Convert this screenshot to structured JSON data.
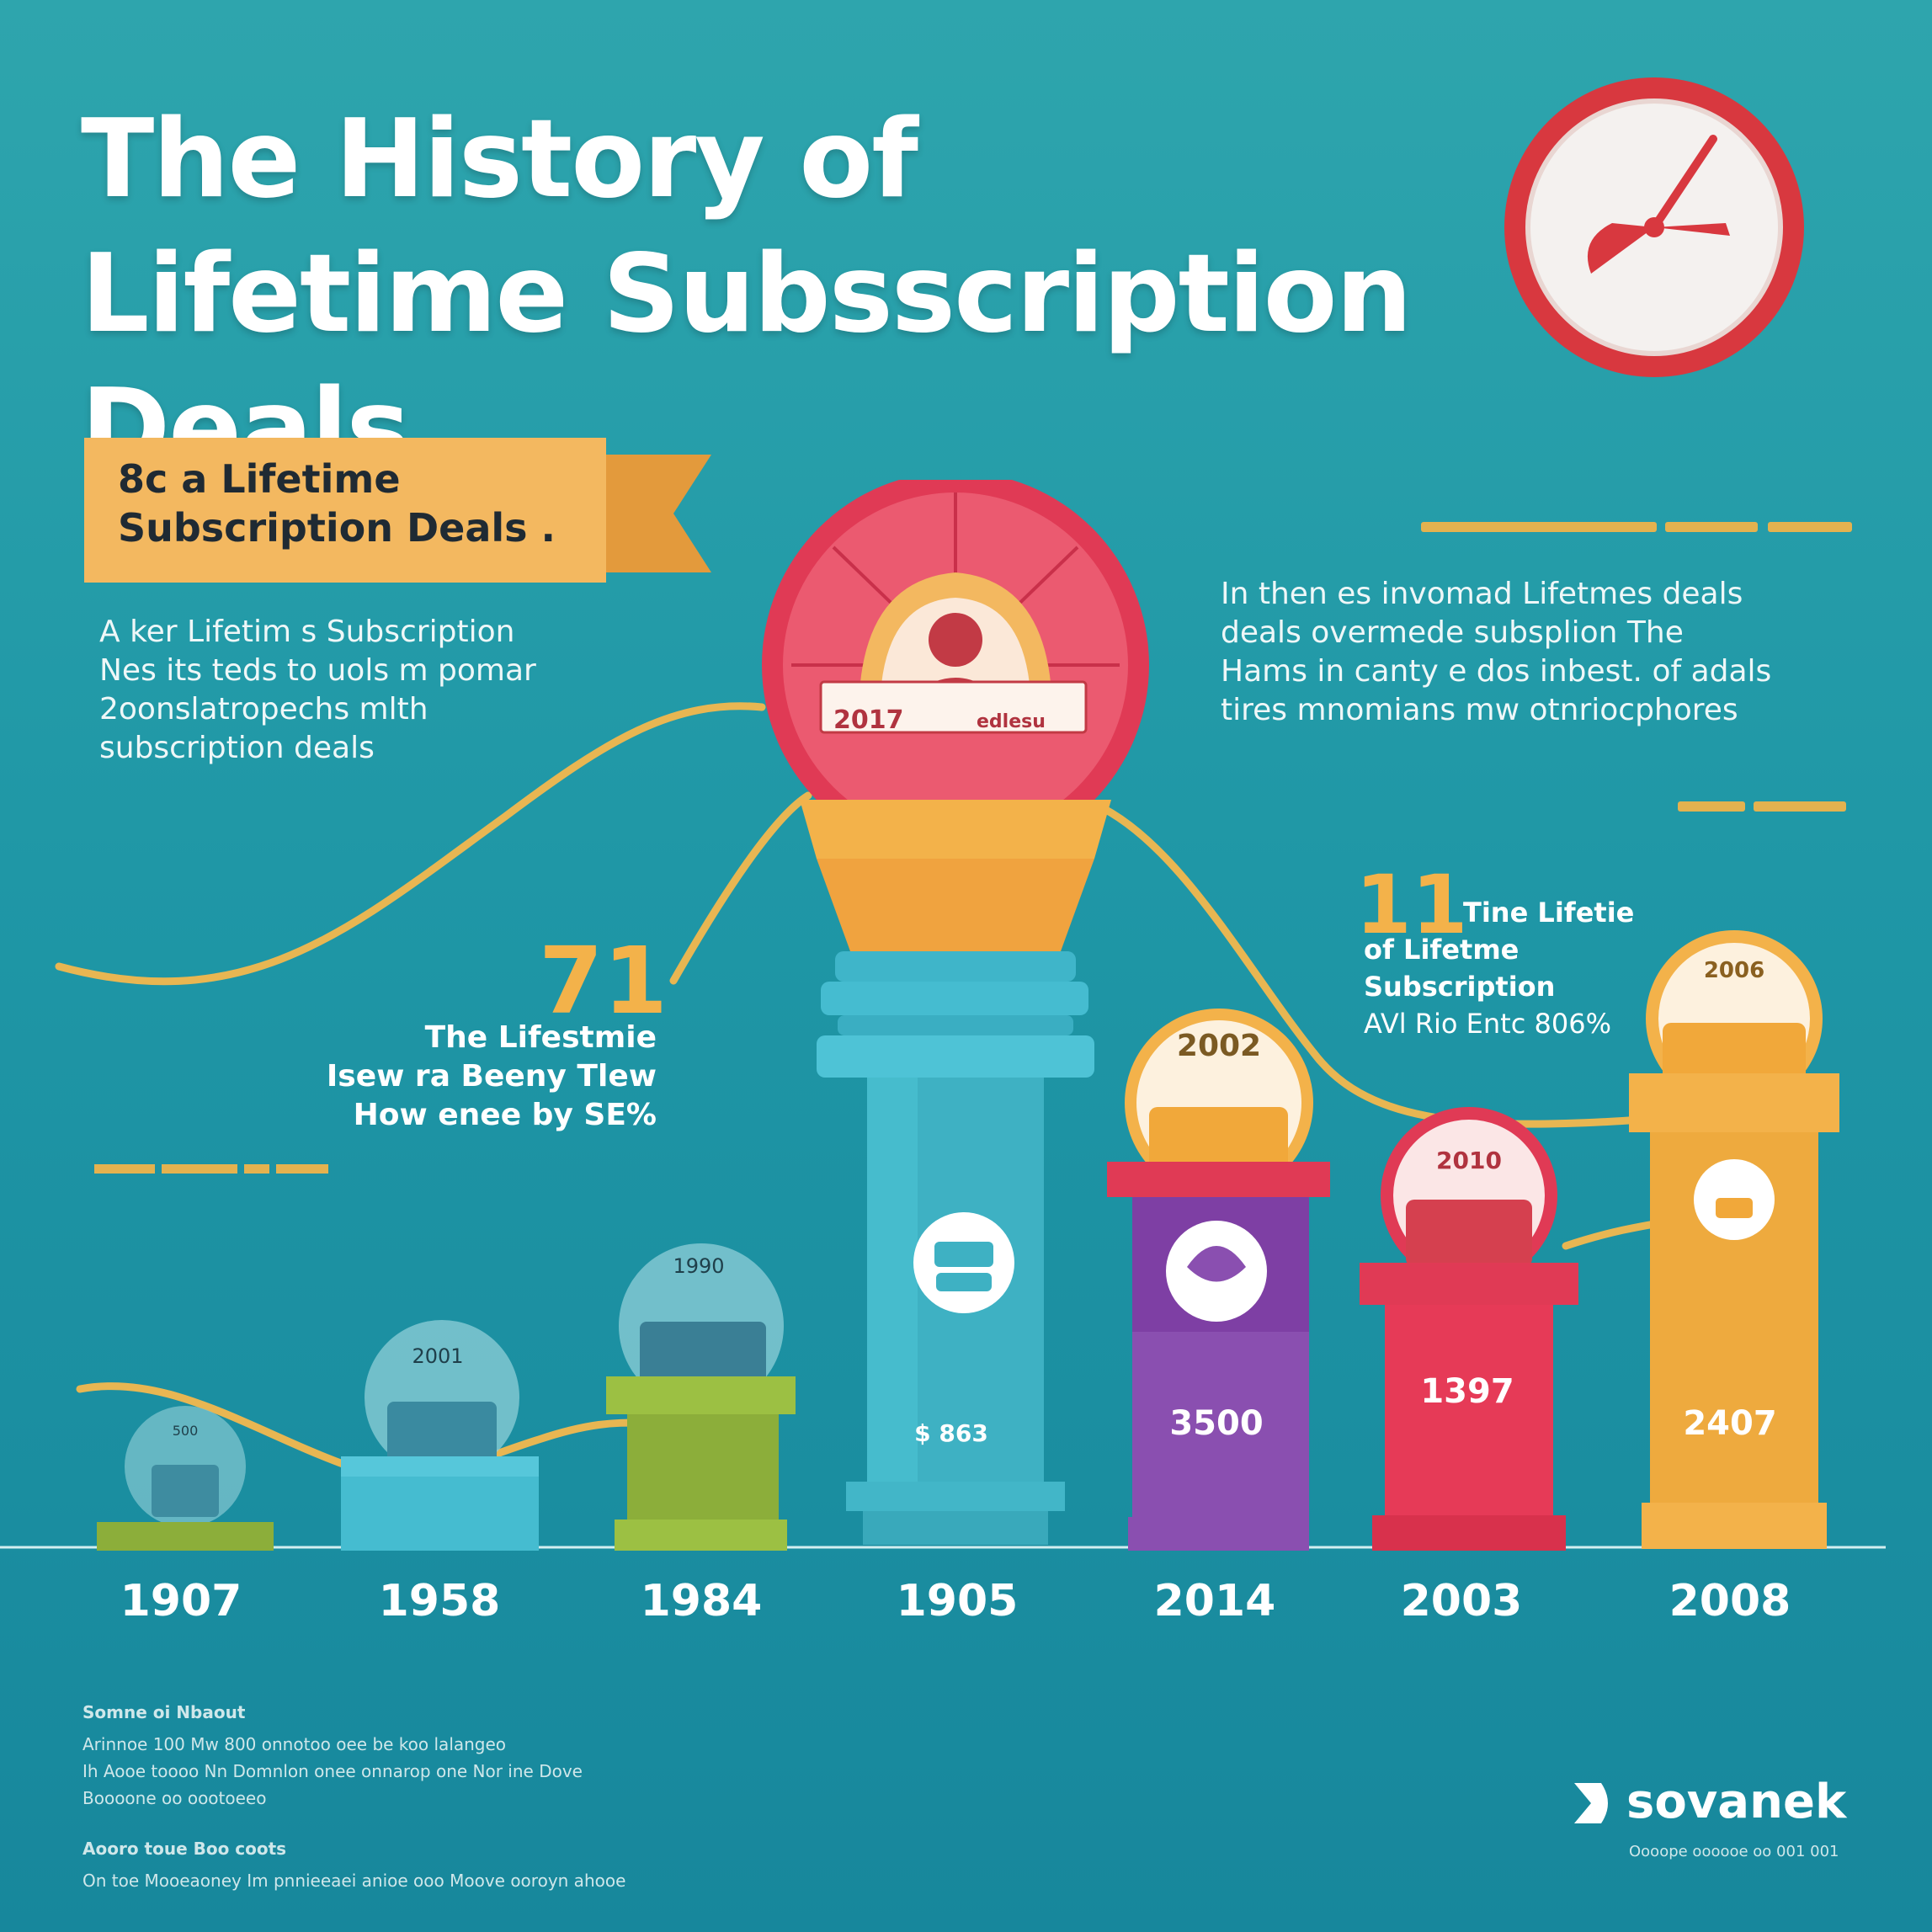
{
  "title": "The History of Lifetime Subsscription Deals",
  "ribbon": {
    "line1": "8c a Lifetime",
    "line2": "Subscription Deals ."
  },
  "left_paragraph": [
    "A ker Lifetim s Subscription",
    "Nes its teds to uols m pomar",
    "2oonslatropechs mlth",
    "subscription deals"
  ],
  "right_paragraph": [
    "In then  es invomad Lifetmes deals",
    "deals overmede subsplion The",
    "Hams in canty e dos inbest. of adals",
    "tires mnomians mw otnriocphores"
  ],
  "stat_left": {
    "number": "71",
    "lines": [
      "The Lifestmie",
      "Isew ra Beeny Tlew",
      "How enee by SE%"
    ]
  },
  "stat_right": {
    "number": "11",
    "lines": [
      "Tine Lifetie",
      "of Lifetme",
      "Subscription",
      "AVl Rio Entc 806%"
    ]
  },
  "globe_label": {
    "year": "2017",
    "tag": "edlesu"
  },
  "bars": [
    {
      "year": "1907",
      "top_label": "500",
      "value": "",
      "sub": ""
    },
    {
      "year": "1958",
      "top_label": "2001",
      "value": "",
      "sub": ""
    },
    {
      "year": "1984",
      "top_label": "1990",
      "value": "",
      "sub": ""
    },
    {
      "year": "1905",
      "top_label": "",
      "value": "$ 863",
      "sub": ""
    },
    {
      "year": "2014",
      "top_label": "2002",
      "value": "3500",
      "sub": ""
    },
    {
      "year": "2003",
      "top_label": "2010",
      "value": "1397",
      "sub": ""
    },
    {
      "year": "2008",
      "top_label": "2006",
      "value": "2407",
      "sub": ""
    }
  ],
  "footer": {
    "heading": "Somne oi Nbaout",
    "lines": [
      "Arinnoe 100 Mw 800 onnotoo oee be koo lalangeo",
      "Ih Aooe toooo Nn Domnlon onee onnarop one Nor ine Dove",
      "Boooone oo oootoeeo"
    ],
    "heading2": "Aooro toue Boo coots",
    "line2": "On toe Mooeaoney Im pnnieeaei anioe ooo Moove ooroyn ahooe"
  },
  "logo": {
    "name": "sovanek",
    "tagline": "Oooope oooooe oo 001 001"
  },
  "colors": {
    "background": "#1f97a6",
    "accent_yellow": "#f3b24a",
    "accent_red": "#e03a55",
    "accent_purple": "#8a4fb0",
    "accent_green": "#8cae3a",
    "accent_teal": "#45bcd0"
  }
}
